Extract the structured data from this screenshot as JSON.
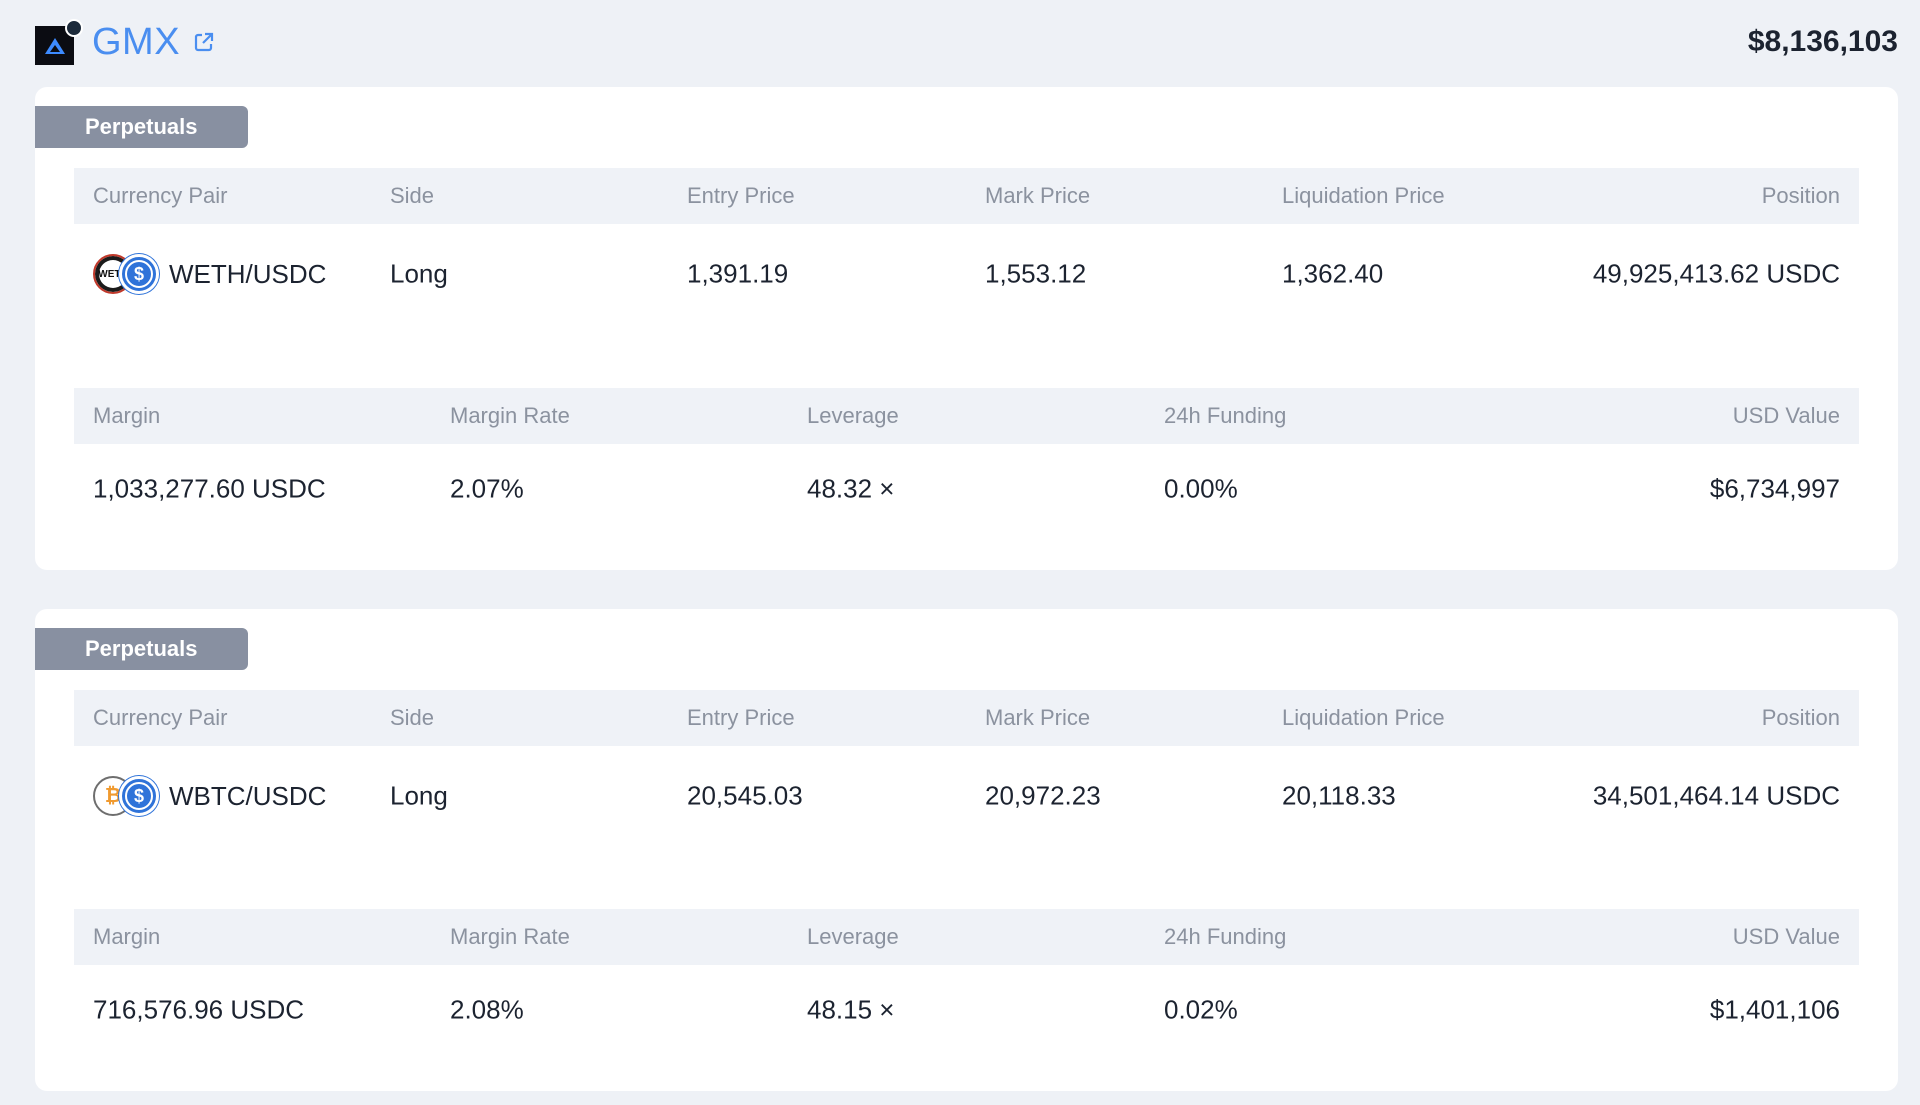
{
  "header": {
    "protocol_name": "GMX",
    "total_value": "$8,136,103",
    "logo_icon": "gmx-logo-icon",
    "external_link_icon": "external-link-icon"
  },
  "columns_top": {
    "currency_pair": "Currency Pair",
    "side": "Side",
    "entry_price": "Entry Price",
    "mark_price": "Mark Price",
    "liquidation_price": "Liquidation Price",
    "position": "Position"
  },
  "columns_bottom": {
    "margin": "Margin",
    "margin_rate": "Margin Rate",
    "leverage": "Leverage",
    "funding": "24h Funding",
    "usd_value": "USD Value"
  },
  "positions": [
    {
      "tag": "Perpetuals",
      "base_token_icon": "weth-token-icon",
      "base_token_text": "WETH",
      "quote_token_icon": "usdc-token-icon",
      "pair": "WETH/USDC",
      "side": "Long",
      "entry_price": "1,391.19",
      "mark_price": "1,553.12",
      "liquidation_price": "1,362.40",
      "position": "49,925,413.62 USDC",
      "margin": "1,033,277.60 USDC",
      "margin_rate": "2.07%",
      "leverage": "48.32 ×",
      "funding": "0.00%",
      "usd_value": "$6,734,997"
    },
    {
      "tag": "Perpetuals",
      "base_token_icon": "wbtc-token-icon",
      "quote_token_icon": "usdc-token-icon",
      "pair": "WBTC/USDC",
      "side": "Long",
      "entry_price": "20,545.03",
      "mark_price": "20,972.23",
      "liquidation_price": "20,118.33",
      "position": "34,501,464.14 USDC",
      "margin": "716,576.96 USDC",
      "margin_rate": "2.08%",
      "leverage": "48.15 ×",
      "funding": "0.02%",
      "usd_value": "$1,401,106"
    }
  ],
  "colors": {
    "background": "#eef1f6",
    "brand_link": "#4a8ef0",
    "tag_bg": "#8890a1",
    "header_row_bg": "#eff2f7",
    "usdc_blue": "#2f73d9"
  }
}
